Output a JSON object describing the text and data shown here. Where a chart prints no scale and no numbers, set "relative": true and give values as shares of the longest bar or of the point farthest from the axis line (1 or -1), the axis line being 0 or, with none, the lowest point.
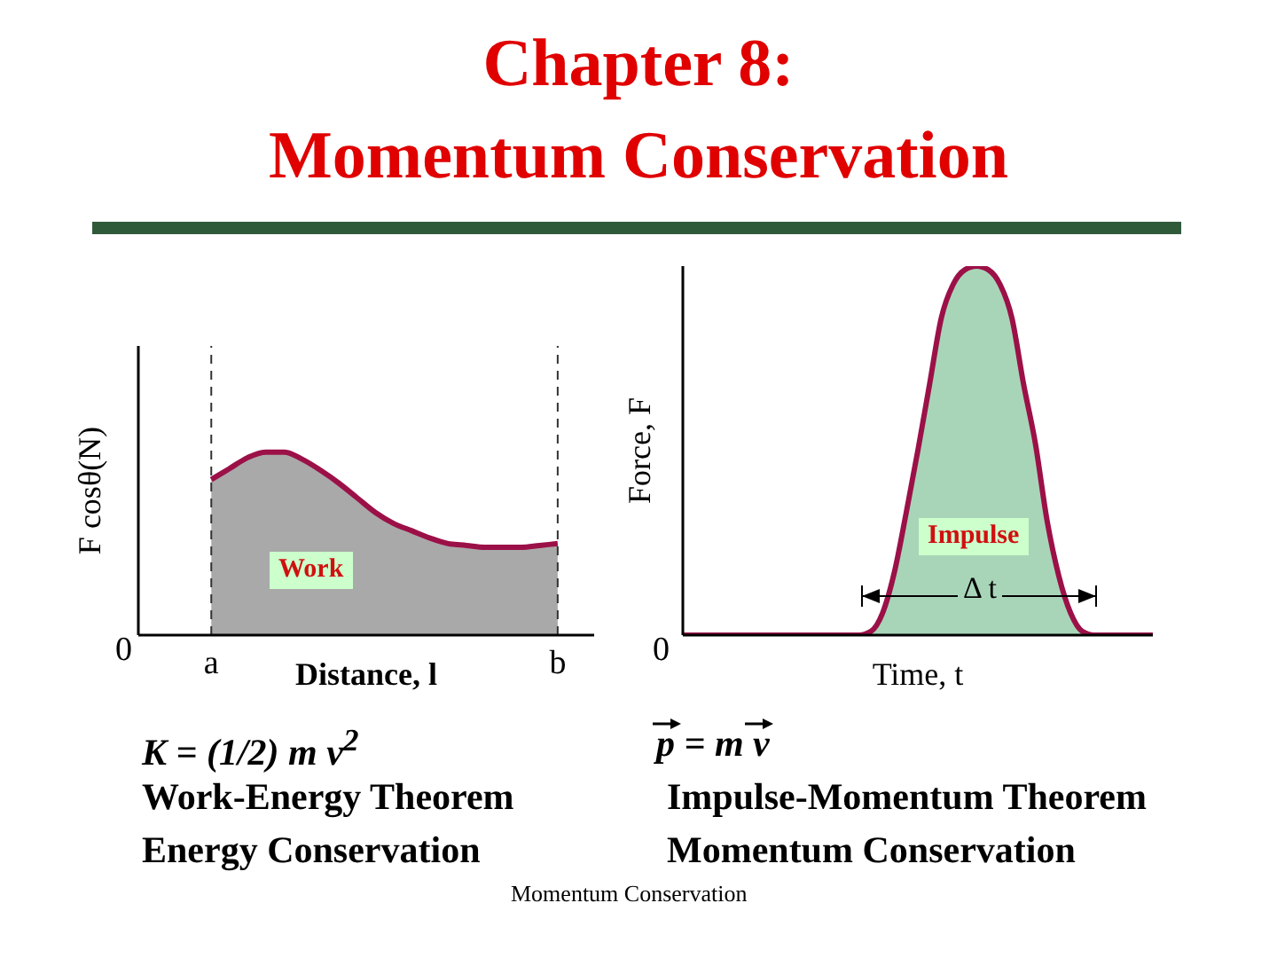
{
  "chart_data": [
    {
      "type": "area",
      "title": "Chapter 8:\nMomentum Conservation",
      "xlabel": "Distance, l",
      "ylabel": "F cosθ(N)",
      "relative": true,
      "categories": [
        null,
        null,
        null,
        null,
        "a",
        null,
        null,
        null,
        null,
        null,
        null,
        null,
        null,
        null,
        null,
        null,
        null,
        null,
        null,
        null,
        null,
        null,
        null,
        "b",
        null,
        null
      ],
      "series": [
        {
          "color": "#a9a9a9",
          "values": [
            null,
            null,
            null,
            null,
            0.85,
            0.91,
            0.97,
            1,
            1,
            0.96,
            0.9,
            0.83,
            0.75,
            0.67,
            0.61,
            0.57,
            0.53,
            0.5,
            0.49,
            0.48,
            0.48,
            0.48,
            0.49,
            0.5,
            null,
            null
          ]
        }
      ],
      "ref_lines": [
        {
          "axis": "x",
          "value": "a",
          "line_style": "dashed"
        },
        {
          "axis": "x",
          "value": "b",
          "line_style": "dashed"
        }
      ],
      "annotations": [
        "0",
        "Work",
        "K = (1/2) m v$^{2}$",
        "Work-Energy Theorem",
        "Energy Conservation"
      ]
    },
    {
      "type": "area",
      "xlabel": "Time, t",
      "ylabel": "Force, F",
      "relative": true,
      "categories": [
        null,
        null,
        null,
        null,
        null,
        null,
        null,
        null,
        null,
        null,
        null,
        null,
        null,
        null,
        null,
        null,
        null,
        null,
        null,
        null,
        null,
        null,
        null,
        null,
        null,
        null,
        null,
        null,
        null,
        null,
        null,
        null,
        null,
        null,
        null,
        null,
        null,
        null,
        null,
        null,
        null
      ],
      "series": [
        {
          "color": "#a8d5b8",
          "values": [
            0,
            0,
            0,
            0,
            0,
            0,
            0,
            0,
            0,
            0,
            0,
            0,
            0,
            0,
            0,
            0,
            0.01,
            0.06,
            0.17,
            0.33,
            0.5,
            0.68,
            0.86,
            0.95,
            0.99,
            1,
            0.99,
            0.95,
            0.86,
            0.68,
            0.52,
            0.31,
            0.16,
            0.06,
            0.01,
            0,
            0,
            0,
            0,
            0,
            0
          ]
        }
      ],
      "annotations": [
        "0",
        "Impulse",
        "Δ t",
        "p = m v",
        "Impulse-Momentum Theorem",
        "Momentum Conservation",
        "Momentum Conservation"
      ]
    }
  ]
}
